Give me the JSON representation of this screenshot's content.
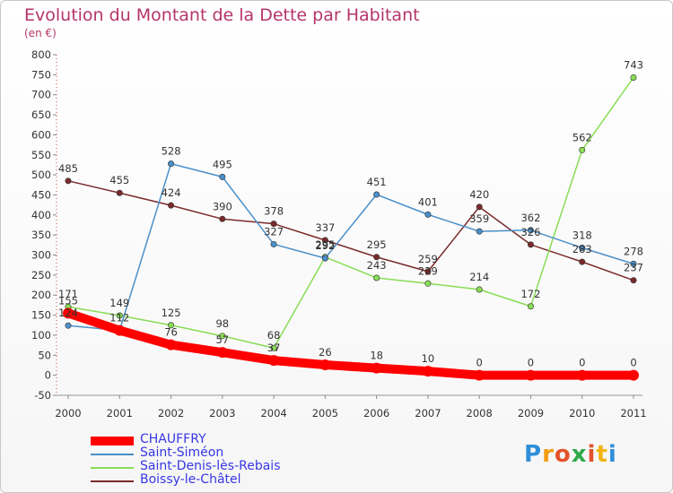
{
  "header": {
    "title": "Evolution du Montant de la Dette par Habitant",
    "unit": "(en €)"
  },
  "logo": {
    "text": "Proxiti",
    "letter_colors": [
      "#2f8fd8",
      "#f39c12",
      "#e2522b",
      "#2ea84b",
      "#e2522b",
      "#f3b412",
      "#2f8fd8"
    ]
  },
  "chart_data": {
    "type": "line",
    "title": "Evolution du Montant de la Dette par Habitant",
    "subtitle": "(en €)",
    "xlabel": "",
    "ylabel": "",
    "categories": [
      "2000",
      "2001",
      "2002",
      "2003",
      "2004",
      "2005",
      "2006",
      "2007",
      "2008",
      "2009",
      "2010",
      "2011"
    ],
    "yticks": [
      "-50",
      "0",
      "50",
      "100",
      "150",
      "200",
      "250",
      "300",
      "350",
      "400",
      "450",
      "500",
      "550",
      "600",
      "650",
      "700",
      "750",
      "800"
    ],
    "ylim": [
      -50,
      800
    ],
    "grid": false,
    "legend": "bottom-left",
    "series": [
      {
        "name": "CHAUFFRY",
        "color": "#ff0000",
        "values": [
          155,
          112,
          76,
          57,
          37,
          26,
          18,
          10,
          0,
          0,
          0,
          0
        ],
        "labels": [
          "155",
          "112",
          "76",
          "57",
          "37",
          "26",
          "18",
          "10",
          "0",
          "0",
          "0",
          "0"
        ]
      },
      {
        "name": "Saint-Siméon",
        "color": "#4a8fc8",
        "values": [
          124,
          112,
          528,
          495,
          327,
          292,
          451,
          401,
          359,
          362,
          318,
          278
        ],
        "labels": [
          "124",
          "",
          "528",
          "495",
          "327",
          "292",
          "451",
          "401",
          "359",
          "362",
          "318",
          "278"
        ]
      },
      {
        "name": "Saint-Denis-lès-Rebais",
        "color": "#88dd55",
        "values": [
          171,
          149,
          125,
          98,
          68,
          295,
          243,
          229,
          214,
          172,
          562,
          743
        ],
        "labels": [
          "171",
          "149",
          "125",
          "98",
          "68",
          "295",
          "243",
          "229",
          "214",
          "172",
          "562",
          "743"
        ]
      },
      {
        "name": "Boissy-le-Châtel",
        "color": "#7a2a2a",
        "values": [
          485,
          455,
          424,
          390,
          378,
          337,
          295,
          259,
          420,
          326,
          283,
          237
        ],
        "labels": [
          "485",
          "455",
          "424",
          "390",
          "378",
          "337",
          "295",
          "259",
          "420",
          "326",
          "283",
          "237"
        ]
      }
    ]
  }
}
